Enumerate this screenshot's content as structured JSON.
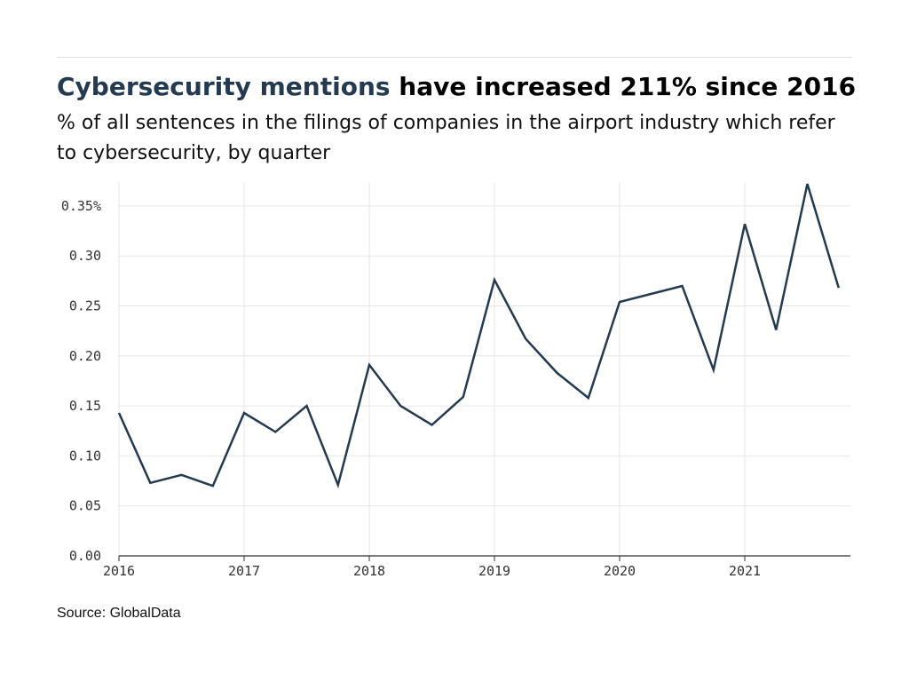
{
  "header": {
    "title_highlight": "Cybersecurity mentions",
    "title_rest": " have increased 211% since 2016",
    "subtitle": "% of all sentences in the filings of companies in the airport industry which refer to cybersecurity, by quarter"
  },
  "footer": {
    "source": "Source: GlobalData"
  },
  "colors": {
    "line": "#233a50",
    "grid": "#e6e6e6",
    "axis": "#333333"
  },
  "chart_data": {
    "type": "line",
    "title": "Cybersecurity mentions have increased 211% since 2016",
    "subtitle": "% of all sentences in the filings of companies in the airport industry which refer to cybersecurity, by quarter",
    "xlabel": "",
    "ylabel": "",
    "xlim": [
      2016,
      2021.75
    ],
    "ylim": [
      0,
      0.37
    ],
    "x_ticks": [
      2016,
      2017,
      2018,
      2019,
      2020,
      2021
    ],
    "x_tick_labels": [
      "2016",
      "2017",
      "2018",
      "2019",
      "2020",
      "2021"
    ],
    "y_ticks": [
      0,
      0.05,
      0.1,
      0.15,
      0.2,
      0.25,
      0.3,
      0.35
    ],
    "y_tick_labels": [
      "0.00",
      "0.05",
      "0.10",
      "0.15",
      "0.20",
      "0.25",
      "0.30",
      "0.35%"
    ],
    "grid": true,
    "legend": "none",
    "x": [
      2016,
      2016.25,
      2016.5,
      2016.75,
      2017,
      2017.25,
      2017.5,
      2017.75,
      2018,
      2018.25,
      2018.5,
      2018.75,
      2019,
      2019.25,
      2019.5,
      2019.75,
      2020,
      2020.25,
      2020.5,
      2020.75,
      2021,
      2021.25,
      2021.5,
      2021.75
    ],
    "series": [
      {
        "values": [
          0.143,
          0.073,
          0.081,
          0.07,
          0.143,
          0.124,
          0.15,
          0.071,
          0.191,
          0.15,
          0.131,
          0.159,
          0.276,
          0.217,
          0.183,
          0.158,
          0.254,
          0.262,
          0.27,
          0.186,
          0.332,
          0.226,
          0.372,
          0.268
        ]
      }
    ]
  }
}
